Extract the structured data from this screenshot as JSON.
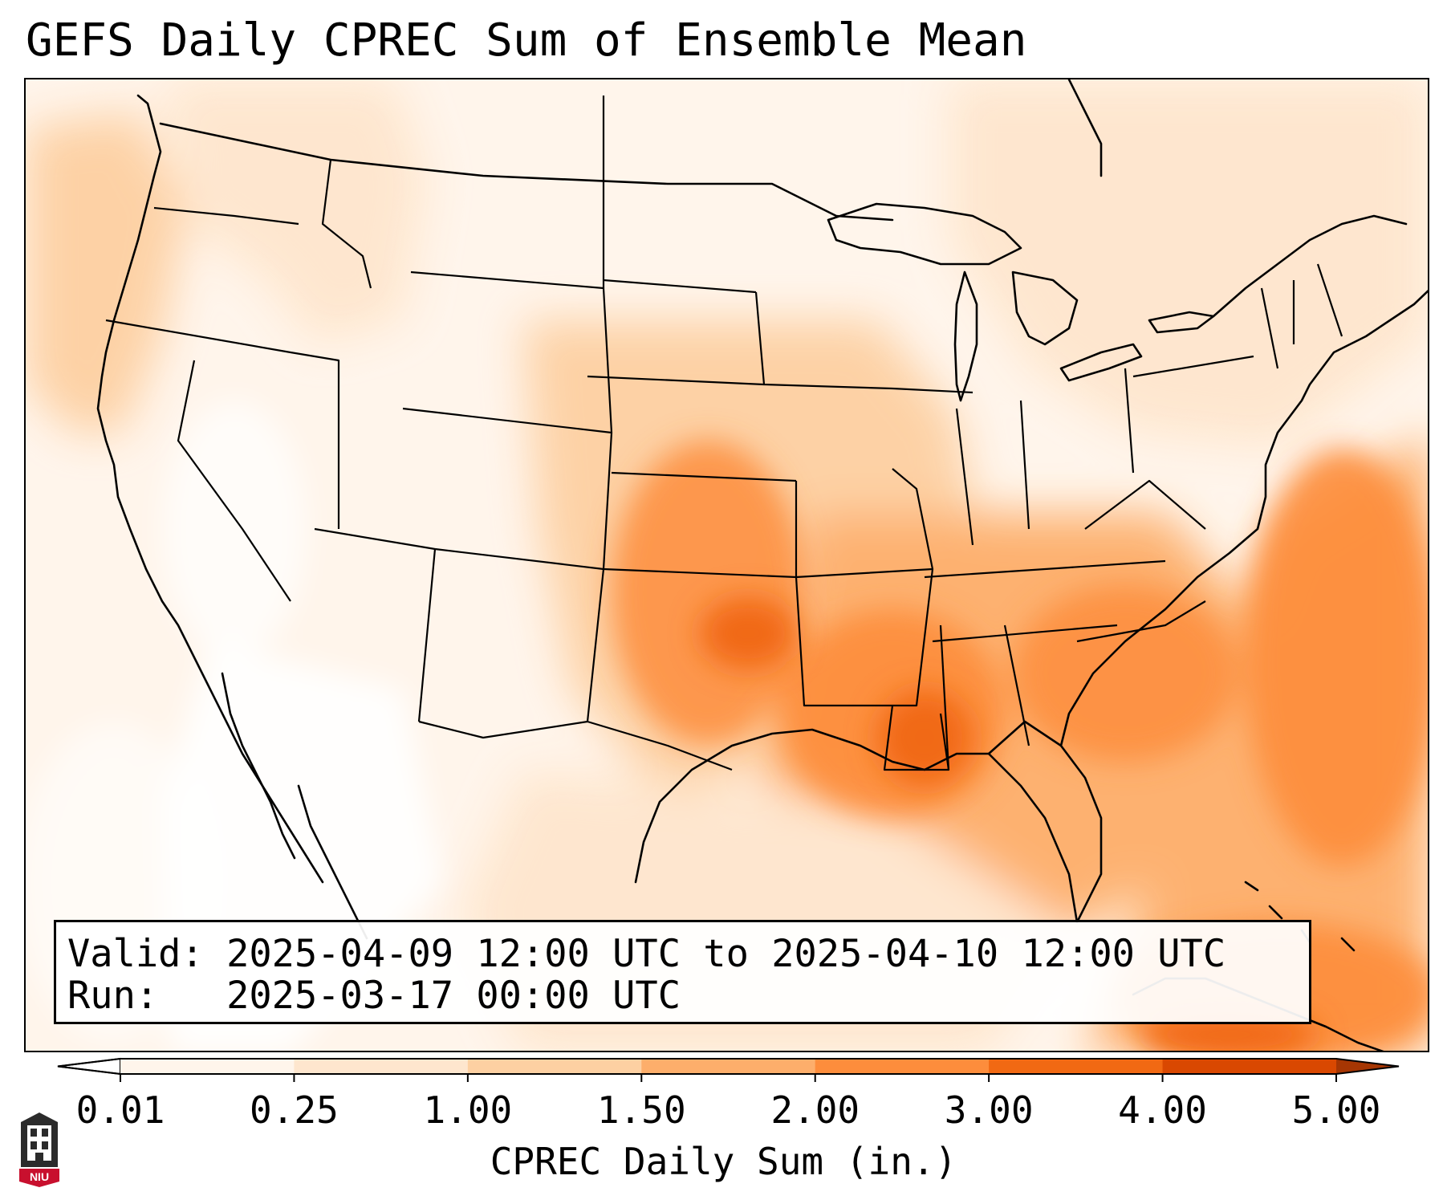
{
  "title": "GEFS Daily CPREC Sum of Ensemble Mean",
  "info": {
    "valid": "Valid: 2025-04-09 12:00 UTC to 2025-04-10 12:00 UTC",
    "run": "Run:   2025-03-17 00:00 UTC"
  },
  "colorbar": {
    "title": "CPREC Daily Sum (in.)",
    "ticks": [
      "0.01",
      "0.25",
      "1.00",
      "1.50",
      "2.00",
      "3.00",
      "4.00",
      "5.00"
    ],
    "colors": [
      "#fff5eb",
      "#fee6ce",
      "#fdd0a2",
      "#fdae6b",
      "#fd8d3c",
      "#f16913",
      "#d94801"
    ],
    "under_color": "#ffffff",
    "over_color": "#a63603"
  },
  "logo": {
    "text": "NIU",
    "icon": "university-tower-icon"
  }
}
